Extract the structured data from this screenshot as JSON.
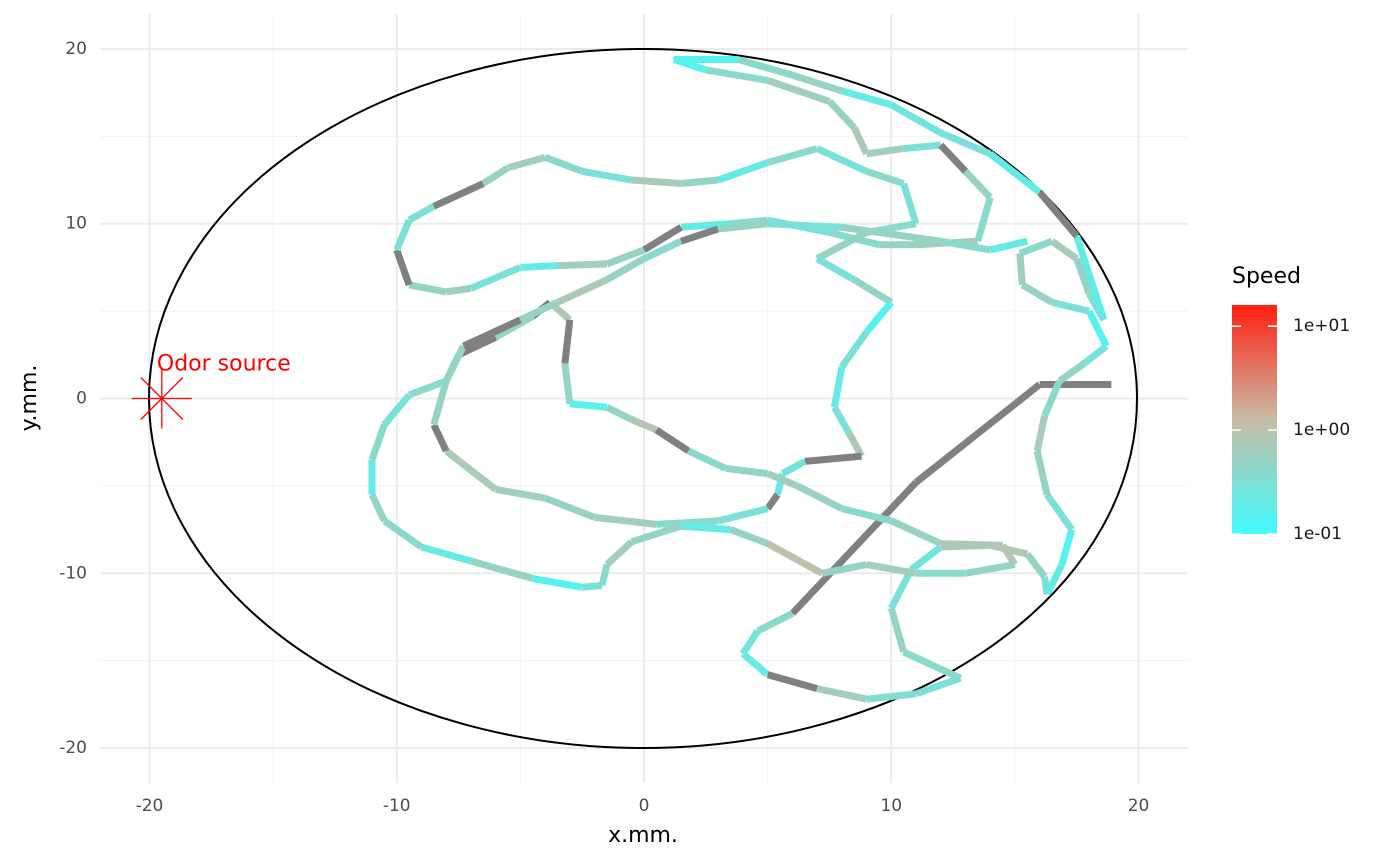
{
  "chart_data": {
    "type": "path",
    "x_label": "x.mm.",
    "y_label": "y.mm.",
    "xlim": [
      -22,
      22
    ],
    "ylim": [
      -22,
      22
    ],
    "xticks": [
      -20,
      -10,
      0,
      10,
      20
    ],
    "yticks": [
      -20,
      -10,
      0,
      10,
      20
    ],
    "grid": true,
    "annotation": {
      "text": "Odor source",
      "x": -19.5,
      "y": 0,
      "color": "#ff0000"
    },
    "color_scale": {
      "name": "Speed",
      "log": true,
      "limits": [
        0.1,
        16
      ],
      "ticks": [
        {
          "value": 0.1,
          "label": "1e-01"
        },
        {
          "value": 1,
          "label": "1e+00"
        },
        {
          "value": 10,
          "label": "1e+01"
        }
      ],
      "colors": [
        "#40fcfc",
        "#c8bca6",
        "#ff2010"
      ],
      "na_color": "#808080"
    },
    "x": [
      18.9,
      16.0,
      11.0,
      6.0,
      4.6,
      4.0,
      5.0,
      7.0,
      9.0,
      11.0,
      12.8,
      10.5,
      10.0,
      10.8,
      12.0,
      14.0,
      15.5,
      16.2,
      16.3,
      16.9,
      17.3,
      16.3,
      15.9,
      16.2,
      16.8,
      17.8,
      18.7,
      18.0,
      16.5,
      15.3,
      15.2,
      16.5,
      17.5,
      18.0,
      18.6,
      17.5,
      16.0,
      14.0,
      12.0,
      10.0,
      8.0,
      6.0,
      3.8,
      1.2,
      2.5,
      5.0,
      7.5,
      8.5,
      9.0,
      10.5,
      12.0,
      13.0,
      14.0,
      13.5,
      11.0,
      9.5,
      7.5,
      5.0,
      3.5,
      1.5,
      0.0,
      -1.5,
      -3.5,
      -5.0,
      -7.0,
      -8.0,
      -9.5,
      -10.0,
      -9.5,
      -8.5,
      -6.5,
      -5.5,
      -4.0,
      -2.5,
      -0.5,
      1.5,
      3.0,
      5.0,
      7.0,
      9.0,
      10.5,
      11.0,
      9.0,
      7.0,
      8.5,
      10.0,
      9.0,
      8.0,
      7.7,
      8.3,
      8.8,
      6.5,
      5.6,
      5.4,
      5.0,
      3.0,
      0.5,
      -2.0,
      -4.0,
      -6.0,
      -8.0,
      -8.5,
      -8.0,
      -7.5,
      -6.0,
      -4.5,
      -3.8,
      -3.0,
      -3.2,
      -3.0,
      -1.5,
      -0.5,
      0.5,
      1.8,
      3.3,
      5.0,
      6.2,
      8.0,
      10.0,
      12.0,
      14.5,
      15.0,
      13.0,
      11.0,
      9.0,
      7.2,
      5.0,
      3.5,
      1.5,
      -0.5,
      -1.5,
      -1.7,
      -2.5,
      -4.5,
      -7.0,
      -9.0,
      -10.5,
      -11.0,
      -11.0,
      -10.5,
      -9.5,
      -8.0,
      -7.3,
      -5.0,
      -3.5,
      -1.5,
      0.0,
      1.5,
      3.0,
      5.0,
      8.0,
      12.0,
      14.0,
      15.5
    ],
    "y": [
      0.8,
      0.8,
      -4.8,
      -12.3,
      -13.3,
      -14.6,
      -15.8,
      -16.6,
      -17.2,
      -16.9,
      -16.0,
      -14.5,
      -12.0,
      -9.8,
      -8.5,
      -8.4,
      -8.9,
      -10.2,
      -11.2,
      -9.5,
      -7.5,
      -5.5,
      -3.0,
      -1.0,
      1.0,
      2.0,
      3.0,
      5.0,
      5.5,
      6.5,
      8.3,
      9.0,
      8.0,
      6.0,
      4.5,
      9.3,
      11.8,
      14.0,
      15.2,
      16.8,
      17.6,
      18.5,
      19.4,
      19.4,
      18.8,
      18.2,
      17.0,
      15.5,
      14.0,
      14.3,
      14.5,
      13.0,
      11.5,
      9.0,
      8.8,
      8.8,
      9.5,
      10.2,
      10.0,
      9.8,
      8.5,
      7.7,
      7.6,
      7.5,
      6.3,
      6.1,
      6.5,
      8.5,
      10.2,
      11.0,
      12.3,
      13.2,
      13.8,
      13.0,
      12.5,
      12.3,
      12.5,
      13.5,
      14.3,
      13.0,
      12.3,
      10.0,
      9.5,
      8.0,
      6.8,
      5.5,
      3.8,
      1.8,
      -0.5,
      -2.0,
      -3.3,
      -3.6,
      -4.3,
      -5.5,
      -6.3,
      -7.0,
      -7.2,
      -6.8,
      -5.7,
      -5.2,
      -3.0,
      -1.5,
      1.0,
      2.5,
      3.5,
      4.7,
      5.5,
      4.5,
      2.0,
      -0.3,
      -0.5,
      -1.2,
      -1.8,
      -3.0,
      -4.0,
      -4.3,
      -5.0,
      -6.3,
      -7.0,
      -8.3,
      -8.4,
      -9.5,
      -10.0,
      -10.0,
      -9.5,
      -10.0,
      -8.3,
      -7.5,
      -7.3,
      -8.2,
      -9.5,
      -10.7,
      -10.8,
      -10.3,
      -9.3,
      -8.5,
      -7.0,
      -5.5,
      -3.5,
      -1.5,
      0.2,
      1.0,
      3.0,
      4.5,
      5.5,
      6.8,
      8.0,
      9.0,
      9.7,
      10.0,
      9.8,
      9.0,
      8.5,
      9.0
    ],
    "speed": [
      null,
      null,
      null,
      0.4,
      0.25,
      0.2,
      null,
      0.6,
      0.35,
      0.3,
      0.4,
      0.5,
      0.3,
      0.25,
      0.8,
      0.9,
      0.5,
      0.3,
      0.2,
      0.15,
      0.3,
      0.5,
      0.7,
      0.4,
      0.5,
      0.3,
      0.15,
      0.3,
      0.5,
      0.6,
      0.4,
      0.7,
      0.5,
      0.3,
      0.2,
      null,
      0.2,
      0.3,
      0.25,
      0.2,
      0.5,
      0.4,
      0.15,
      0.15,
      0.4,
      0.6,
      0.5,
      0.8,
      0.6,
      0.3,
      null,
      0.5,
      0.4,
      0.6,
      0.5,
      0.4,
      0.3,
      0.4,
      0.2,
      null,
      0.5,
      0.6,
      0.2,
      0.3,
      0.6,
      0.5,
      null,
      0.3,
      0.3,
      null,
      0.5,
      0.6,
      0.4,
      0.3,
      0.7,
      0.5,
      0.2,
      0.4,
      0.3,
      0.4,
      0.3,
      0.4,
      0.5,
      0.3,
      0.5,
      0.15,
      0.3,
      0.2,
      0.3,
      0.8,
      null,
      0.25,
      0.2,
      null,
      0.3,
      0.4,
      0.6,
      0.5,
      0.6,
      0.7,
      null,
      0.5,
      0.4,
      null,
      0.5,
      null,
      0.8,
      null,
      0.5,
      0.15,
      0.5,
      0.9,
      null,
      0.4,
      0.5,
      0.6,
      0.5,
      0.4,
      0.5,
      0.8,
      0.9,
      0.5,
      0.4,
      0.6,
      0.5,
      1.0,
      0.5,
      0.2,
      0.5,
      0.6,
      0.4,
      0.3,
      0.15,
      0.5,
      0.2,
      0.4,
      0.5,
      0.2,
      0.4,
      0.3,
      0.4,
      0.5,
      null,
      0.5,
      0.8,
      0.5,
      0.4,
      null,
      0.5,
      0.3,
      0.5,
      0.4,
      0.2,
      0.4
    ]
  }
}
